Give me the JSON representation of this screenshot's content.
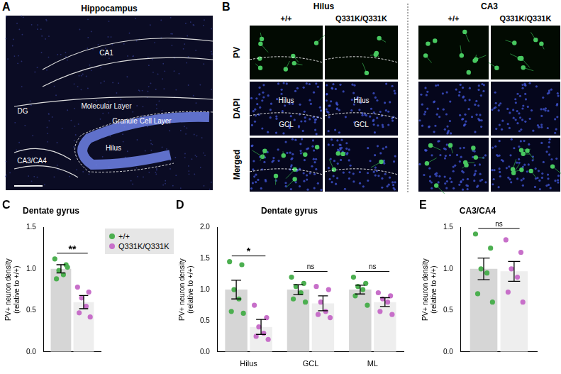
{
  "images": [
    {
      "panel": "A",
      "title": "Hippocampus",
      "labels": [
        "CA1",
        "DG",
        "Molecular Layer",
        "Granule Cell Layer",
        "Hilus",
        "CA3/CA4"
      ]
    },
    {
      "panel": "B",
      "columns": [
        {
          "region": "Hilus",
          "genotypes": [
            "+/+",
            "Q331K/Q331K"
          ]
        },
        {
          "region": "CA3",
          "genotypes": [
            "+/+",
            "Q331K/Q331K"
          ]
        }
      ],
      "rows": [
        "PV",
        "DAPI",
        "Merged"
      ],
      "layer_labels": [
        "Hilus",
        "GCL"
      ]
    }
  ],
  "chart_data": [
    {
      "panel": "C",
      "type": "bar",
      "title": "Dentate gyrus",
      "ylabel": "PV+ neuron density\n(relative to +/+)",
      "categories": [
        null
      ],
      "series": [
        {
          "name": "+/+",
          "color": "#4caf50",
          "values": [
            1.0
          ],
          "error": [
            0.05
          ],
          "points": [
            [
              1.12,
              1.05,
              0.98,
              0.93,
              0.88,
              1.02
            ]
          ]
        },
        {
          "name": "Q331K/Q331K",
          "color": "#c76fc9",
          "values": [
            0.6
          ],
          "error": [
            0.08
          ],
          "points": [
            [
              0.78,
              0.72,
              0.65,
              0.55,
              0.47,
              0.42
            ]
          ]
        }
      ],
      "significance": [
        "**"
      ],
      "ylim": [
        0,
        1.5
      ],
      "yticks": [
        {
          "value": 0,
          "label": "0.0"
        },
        0.5,
        {
          "value": 1,
          "label": "1.0"
        },
        1.5
      ],
      "grid": false,
      "legend": "upper right"
    },
    {
      "panel": "D",
      "type": "bar",
      "title": "Dentate gyrus",
      "ylabel": "PV+ neuron density\n(relative to +/+)",
      "categories": [
        "Hilus",
        "GCL",
        "ML"
      ],
      "series": [
        {
          "name": "+/+",
          "color": "#4caf50",
          "values": [
            1.0,
            1.0,
            1.0
          ],
          "error": [
            0.15,
            0.08,
            0.07
          ],
          "points": [
            [
              1.45,
              1.4,
              1.0,
              0.85,
              0.65,
              0.62
            ],
            [
              1.2,
              1.1,
              1.05,
              0.95,
              0.85,
              0.8
            ],
            [
              1.2,
              1.1,
              1.05,
              1.0,
              0.9,
              0.75
            ]
          ]
        },
        {
          "name": "Q331K/Q331K",
          "color": "#c76fc9",
          "values": [
            0.4,
            0.78,
            0.8
          ],
          "error": [
            0.12,
            0.12,
            0.07
          ],
          "points": [
            [
              0.75,
              0.55,
              0.4,
              0.3,
              0.25,
              0.2
            ],
            [
              1.05,
              1.0,
              0.8,
              0.65,
              0.6,
              0.55
            ],
            [
              0.95,
              0.9,
              0.85,
              0.8,
              0.65,
              0.6
            ]
          ]
        }
      ],
      "significance": [
        "*",
        "ns",
        "ns"
      ],
      "ylim": [
        0,
        2
      ],
      "yticks": [
        {
          "value": 0,
          "label": "0.0"
        },
        0.5,
        {
          "value": 1,
          "label": "1.0"
        },
        1.5,
        {
          "value": 2,
          "label": "2.0"
        }
      ],
      "grid": false
    },
    {
      "panel": "E",
      "type": "bar",
      "title": "CA3/CA4",
      "ylabel": "PV+ neuron density\n(relative to +/+)",
      "categories": [
        null
      ],
      "series": [
        {
          "name": "+/+",
          "color": "#4caf50",
          "values": [
            1.0
          ],
          "error": [
            0.13
          ],
          "points": [
            [
              1.42,
              1.25,
              1.0,
              0.95,
              0.7,
              0.6
            ]
          ]
        },
        {
          "name": "Q331K/Q331K",
          "color": "#c76fc9",
          "values": [
            0.97
          ],
          "error": [
            0.12
          ],
          "points": [
            [
              1.35,
              1.2,
              1.0,
              0.9,
              0.72,
              0.6
            ]
          ]
        }
      ],
      "significance": [
        "ns"
      ],
      "ylim": [
        0,
        1.5
      ],
      "yticks": [
        {
          "value": 0,
          "label": "0.0"
        },
        0.5,
        {
          "value": 1,
          "label": "1.0"
        },
        1.5
      ],
      "grid": false
    }
  ]
}
